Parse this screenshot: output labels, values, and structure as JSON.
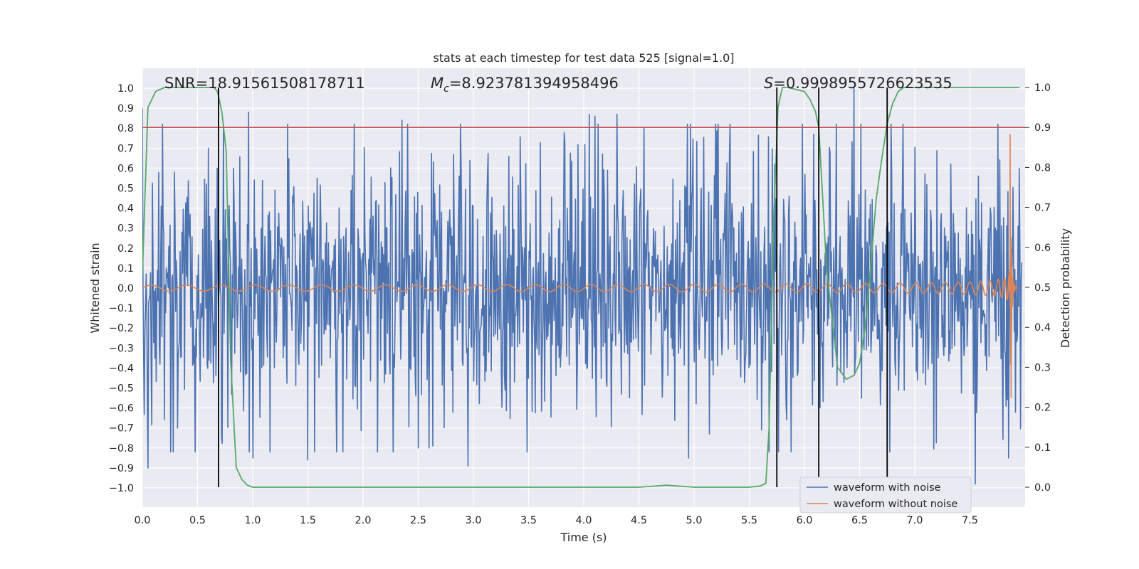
{
  "chart_data": {
    "type": "line",
    "title": "stats at each timestep for test data 525 [signal=1.0]",
    "xlabel": "Time (s)",
    "ylabel": "Whitened strain",
    "y2label": "Detection probability",
    "xlim": [
      0.0,
      8.0
    ],
    "ylim": [
      -1.1,
      1.1
    ],
    "y2lim": [
      -0.05,
      1.05
    ],
    "grid": true,
    "xticks": [
      0.0,
      0.5,
      1.0,
      1.5,
      2.0,
      2.5,
      3.0,
      3.5,
      4.0,
      4.5,
      5.0,
      5.5,
      6.0,
      6.5,
      7.0,
      7.5
    ],
    "xtick_labels": [
      "0.0",
      "0.5",
      "1.0",
      "1.5",
      "2.0",
      "2.5",
      "3.0",
      "3.5",
      "4.0",
      "4.5",
      "5.0",
      "5.5",
      "6.0",
      "6.5",
      "7.0",
      "7.5"
    ],
    "yticks": [
      1.0,
      0.9,
      0.8,
      0.7,
      0.6,
      0.5,
      0.4,
      0.3,
      0.2,
      0.1,
      0.0,
      -0.1,
      -0.2,
      -0.3,
      -0.4,
      -0.5,
      -0.6,
      -0.7,
      -0.8,
      -0.9,
      -1.0
    ],
    "ytick_labels": [
      "1.0",
      "0.9",
      "0.8",
      "0.7",
      "0.6",
      "0.5",
      "0.4",
      "0.3",
      "0.2",
      "0.1",
      "0.0",
      "−0.1",
      "−0.2",
      "−0.3",
      "−0.4",
      "−0.5",
      "−0.6",
      "−0.7",
      "−0.8",
      "−0.9",
      "−1.0"
    ],
    "y2ticks": [
      1.0,
      0.9,
      0.8,
      0.7,
      0.6,
      0.5,
      0.4,
      0.3,
      0.2,
      0.1,
      0.0
    ],
    "y2tick_labels": [
      "1.0",
      "0.9",
      "0.8",
      "0.7",
      "0.6",
      "0.5",
      "0.4",
      "0.3",
      "0.2",
      "0.1",
      "0.0"
    ],
    "annotations": {
      "snr": "SNR=18.91561508178711",
      "mc_symbol": "M",
      "mc_sub": "c",
      "mc_value": "=8.923781394958496",
      "s_symbol": "S",
      "s_value": "=0.9998955726623535"
    },
    "threshold": {
      "axis": "y2",
      "value": 0.9,
      "color": "#c44e52"
    },
    "vlines_x": [
      0.69,
      5.75,
      6.13,
      6.75
    ],
    "series": [
      {
        "name": "waveform with noise",
        "color": "#4c72b0",
        "axis": "y",
        "samples": 1400,
        "t_end": 7.97,
        "envelope": 0.3,
        "noise_seed": 525,
        "spike_times": [
          0.0,
          0.05,
          0.32,
          0.6,
          0.68,
          0.96,
          1.0,
          1.5,
          2.35,
          2.5,
          2.6,
          2.95,
          4.05,
          4.1,
          4.3,
          4.95,
          6.45,
          7.55,
          7.85,
          7.95
        ],
        "spike_values": [
          0.9,
          -0.9,
          -0.7,
          0.7,
          0.6,
          0.88,
          -0.85,
          -0.86,
          0.84,
          -0.8,
          -0.8,
          -0.89,
          0.87,
          0.86,
          0.87,
          -0.85,
          1.0,
          -0.98,
          -0.85,
          0.6
        ]
      },
      {
        "name": "waveform without noise",
        "color": "#dd8452",
        "axis": "y",
        "kind": "chirp",
        "t_merger": 7.87,
        "t_end": 7.93,
        "amp_start": 0.015,
        "amp_peak": 0.77,
        "amp_trough": -0.55
      },
      {
        "name": "detection probability",
        "color": "#55a868",
        "axis": "y2",
        "x": [
          0.0,
          0.05,
          0.12,
          0.2,
          0.3,
          0.5,
          0.65,
          0.68,
          0.72,
          0.76,
          0.8,
          0.85,
          0.9,
          0.95,
          1.0,
          1.5,
          2.0,
          3.0,
          4.0,
          4.5,
          4.6,
          4.7,
          4.75,
          4.8,
          4.9,
          5.0,
          5.5,
          5.6,
          5.65,
          5.68,
          5.72,
          5.76,
          5.8,
          5.85,
          6.0,
          6.05,
          6.1,
          6.13,
          6.2,
          6.3,
          6.38,
          6.45,
          6.5,
          6.55,
          6.6,
          6.65,
          6.7,
          6.75,
          6.8,
          6.85,
          6.9,
          7.0,
          7.5,
          7.95
        ],
        "y": [
          0.53,
          0.95,
          0.99,
          1.0,
          1.0,
          1.0,
          1.0,
          0.99,
          0.94,
          0.84,
          0.32,
          0.05,
          0.02,
          0.005,
          0.0,
          0.0,
          0.0,
          0.0,
          0.0,
          0.0,
          0.002,
          0.004,
          0.005,
          0.004,
          0.002,
          0.0,
          0.0,
          0.003,
          0.01,
          0.15,
          0.65,
          0.95,
          1.0,
          1.0,
          0.99,
          0.97,
          0.94,
          0.9,
          0.55,
          0.3,
          0.27,
          0.28,
          0.31,
          0.4,
          0.55,
          0.72,
          0.82,
          0.91,
          0.96,
          0.99,
          1.0,
          1.0,
          1.0,
          1.0
        ]
      }
    ],
    "legend": {
      "placement": "lower-right",
      "entries": [
        {
          "label": "waveform with noise",
          "color": "#4c72b0"
        },
        {
          "label": "waveform without noise",
          "color": "#dd8452"
        }
      ]
    }
  }
}
